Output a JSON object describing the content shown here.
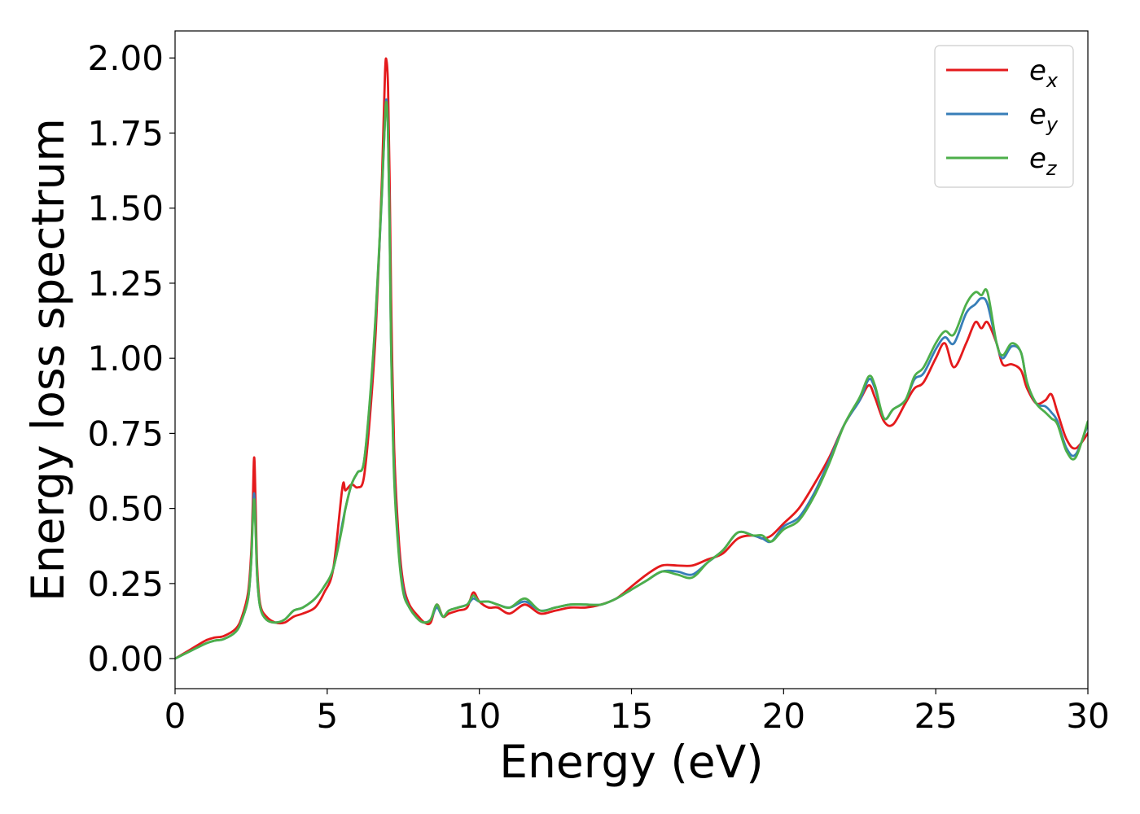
{
  "chart_data": {
    "type": "line",
    "title": "",
    "xlabel": "Energy (eV)",
    "ylabel": "Energy loss spectrum",
    "xlim": [
      0,
      30
    ],
    "ylim": [
      -0.1,
      2.09
    ],
    "xticks": [
      0,
      5,
      10,
      15,
      20,
      25,
      30
    ],
    "xtick_labels": [
      "0",
      "5",
      "10",
      "15",
      "20",
      "25",
      "30"
    ],
    "yticks": [
      0,
      0.25,
      0.5,
      0.75,
      1.0,
      1.25,
      1.5,
      1.75,
      2.0
    ],
    "ytick_labels": [
      "0.00",
      "0.25",
      "0.50",
      "0.75",
      "1.00",
      "1.25",
      "1.50",
      "1.75",
      "2.00"
    ],
    "grid": false,
    "legend_position": "top-right",
    "series": [
      {
        "name": "e_x",
        "label_base": "e",
        "label_sub": "x",
        "color": "#e41a1c",
        "x": [
          0,
          0.5,
          1.0,
          1.3,
          1.6,
          2.0,
          2.2,
          2.4,
          2.5,
          2.55,
          2.6,
          2.65,
          2.7,
          2.8,
          3.0,
          3.3,
          3.6,
          3.9,
          4.2,
          4.6,
          4.9,
          5.2,
          5.5,
          5.6,
          5.8,
          6.0,
          6.2,
          6.4,
          6.6,
          6.8,
          6.9,
          6.95,
          7.0,
          7.05,
          7.1,
          7.2,
          7.35,
          7.5,
          7.7,
          8.0,
          8.2,
          8.4,
          8.6,
          8.8,
          9.0,
          9.3,
          9.6,
          9.8,
          10.0,
          10.3,
          10.6,
          11.0,
          11.5,
          12.0,
          12.5,
          13.0,
          13.5,
          14.0,
          14.5,
          15.0,
          15.5,
          16.0,
          16.5,
          17.0,
          17.5,
          18.0,
          18.5,
          19.0,
          19.3,
          19.6,
          20.0,
          20.5,
          21.0,
          21.5,
          22.0,
          22.5,
          22.8,
          23.0,
          23.3,
          23.6,
          24.0,
          24.3,
          24.6,
          25.0,
          25.3,
          25.6,
          26.0,
          26.3,
          26.5,
          26.7,
          27.0,
          27.2,
          27.5,
          27.8,
          28.0,
          28.3,
          28.6,
          28.8,
          29.0,
          29.3,
          29.6,
          30.0
        ],
        "values": [
          0,
          0.03,
          0.06,
          0.07,
          0.075,
          0.1,
          0.14,
          0.22,
          0.35,
          0.5,
          0.67,
          0.5,
          0.3,
          0.18,
          0.14,
          0.12,
          0.12,
          0.14,
          0.15,
          0.17,
          0.22,
          0.3,
          0.57,
          0.56,
          0.58,
          0.57,
          0.6,
          0.8,
          1.1,
          1.6,
          1.95,
          1.99,
          1.9,
          1.6,
          1.2,
          0.7,
          0.4,
          0.25,
          0.18,
          0.14,
          0.12,
          0.12,
          0.18,
          0.14,
          0.15,
          0.16,
          0.17,
          0.22,
          0.19,
          0.17,
          0.17,
          0.15,
          0.18,
          0.15,
          0.16,
          0.17,
          0.17,
          0.18,
          0.2,
          0.24,
          0.28,
          0.31,
          0.31,
          0.31,
          0.33,
          0.35,
          0.4,
          0.41,
          0.4,
          0.41,
          0.45,
          0.5,
          0.58,
          0.67,
          0.78,
          0.86,
          0.91,
          0.87,
          0.79,
          0.78,
          0.85,
          0.9,
          0.92,
          1.0,
          1.05,
          0.97,
          1.05,
          1.12,
          1.1,
          1.12,
          1.05,
          0.98,
          0.98,
          0.96,
          0.9,
          0.85,
          0.86,
          0.88,
          0.82,
          0.73,
          0.7,
          0.75
        ]
      },
      {
        "name": "e_y",
        "label_base": "e",
        "label_sub": "y",
        "color": "#377eb8",
        "x": [
          0,
          0.5,
          1.0,
          1.3,
          1.6,
          2.0,
          2.2,
          2.4,
          2.5,
          2.55,
          2.6,
          2.65,
          2.7,
          2.8,
          3.0,
          3.3,
          3.6,
          3.9,
          4.2,
          4.6,
          4.9,
          5.2,
          5.5,
          5.6,
          5.8,
          6.0,
          6.2,
          6.4,
          6.6,
          6.8,
          6.9,
          6.95,
          7.0,
          7.05,
          7.1,
          7.2,
          7.35,
          7.5,
          7.7,
          8.0,
          8.2,
          8.4,
          8.6,
          8.8,
          9.0,
          9.3,
          9.6,
          9.8,
          10.0,
          10.3,
          10.6,
          11.0,
          11.5,
          12.0,
          12.5,
          13.0,
          13.5,
          14.0,
          14.5,
          15.0,
          15.5,
          16.0,
          16.5,
          17.0,
          17.5,
          18.0,
          18.5,
          19.0,
          19.3,
          19.6,
          20.0,
          20.5,
          21.0,
          21.5,
          22.0,
          22.5,
          22.8,
          23.0,
          23.3,
          23.6,
          24.0,
          24.3,
          24.6,
          25.0,
          25.3,
          25.6,
          26.0,
          26.3,
          26.5,
          26.7,
          27.0,
          27.2,
          27.5,
          27.8,
          28.0,
          28.3,
          28.6,
          28.8,
          29.0,
          29.3,
          29.6,
          30.0
        ],
        "values": [
          0,
          0.025,
          0.05,
          0.06,
          0.065,
          0.09,
          0.13,
          0.2,
          0.32,
          0.46,
          0.55,
          0.43,
          0.27,
          0.17,
          0.13,
          0.12,
          0.13,
          0.16,
          0.17,
          0.2,
          0.24,
          0.3,
          0.45,
          0.5,
          0.58,
          0.62,
          0.65,
          0.85,
          1.15,
          1.55,
          1.8,
          1.86,
          1.75,
          1.45,
          1.05,
          0.62,
          0.36,
          0.23,
          0.17,
          0.13,
          0.12,
          0.13,
          0.17,
          0.14,
          0.16,
          0.17,
          0.18,
          0.2,
          0.19,
          0.19,
          0.18,
          0.17,
          0.19,
          0.16,
          0.17,
          0.18,
          0.18,
          0.18,
          0.2,
          0.23,
          0.26,
          0.29,
          0.29,
          0.28,
          0.32,
          0.36,
          0.42,
          0.41,
          0.4,
          0.39,
          0.44,
          0.47,
          0.55,
          0.66,
          0.78,
          0.86,
          0.93,
          0.9,
          0.8,
          0.83,
          0.86,
          0.93,
          0.95,
          1.03,
          1.07,
          1.05,
          1.15,
          1.18,
          1.2,
          1.18,
          1.05,
          1.0,
          1.04,
          1.02,
          0.92,
          0.85,
          0.84,
          0.82,
          0.79,
          0.7,
          0.68,
          0.78
        ]
      },
      {
        "name": "e_z",
        "label_base": "e",
        "label_sub": "z",
        "color": "#4daf4a",
        "x": [
          0,
          0.5,
          1.0,
          1.3,
          1.6,
          2.0,
          2.2,
          2.4,
          2.5,
          2.55,
          2.6,
          2.65,
          2.7,
          2.8,
          3.0,
          3.3,
          3.6,
          3.9,
          4.2,
          4.6,
          4.9,
          5.2,
          5.5,
          5.6,
          5.8,
          6.0,
          6.2,
          6.4,
          6.6,
          6.8,
          6.9,
          6.95,
          7.0,
          7.05,
          7.1,
          7.2,
          7.35,
          7.5,
          7.7,
          8.0,
          8.2,
          8.4,
          8.6,
          8.8,
          9.0,
          9.3,
          9.6,
          9.8,
          10.0,
          10.3,
          10.6,
          11.0,
          11.5,
          12.0,
          12.5,
          13.0,
          13.5,
          14.0,
          14.5,
          15.0,
          15.5,
          16.0,
          16.5,
          17.0,
          17.5,
          18.0,
          18.5,
          19.0,
          19.3,
          19.6,
          20.0,
          20.5,
          21.0,
          21.5,
          22.0,
          22.5,
          22.8,
          23.0,
          23.3,
          23.6,
          24.0,
          24.3,
          24.6,
          25.0,
          25.3,
          25.6,
          26.0,
          26.3,
          26.5,
          26.7,
          27.0,
          27.2,
          27.5,
          27.8,
          28.0,
          28.3,
          28.6,
          28.8,
          29.0,
          29.3,
          29.6,
          30.0
        ],
        "values": [
          0,
          0.025,
          0.05,
          0.06,
          0.065,
          0.09,
          0.13,
          0.2,
          0.32,
          0.45,
          0.53,
          0.42,
          0.27,
          0.17,
          0.13,
          0.12,
          0.13,
          0.16,
          0.17,
          0.2,
          0.24,
          0.3,
          0.44,
          0.5,
          0.58,
          0.62,
          0.65,
          0.86,
          1.16,
          1.56,
          1.8,
          1.85,
          1.74,
          1.44,
          1.04,
          0.6,
          0.35,
          0.22,
          0.17,
          0.13,
          0.12,
          0.13,
          0.18,
          0.14,
          0.16,
          0.17,
          0.18,
          0.21,
          0.19,
          0.19,
          0.18,
          0.17,
          0.2,
          0.16,
          0.17,
          0.18,
          0.18,
          0.18,
          0.2,
          0.23,
          0.26,
          0.29,
          0.28,
          0.27,
          0.32,
          0.36,
          0.42,
          0.41,
          0.41,
          0.39,
          0.43,
          0.46,
          0.54,
          0.65,
          0.78,
          0.87,
          0.94,
          0.91,
          0.8,
          0.83,
          0.86,
          0.94,
          0.97,
          1.05,
          1.09,
          1.08,
          1.18,
          1.22,
          1.21,
          1.22,
          1.05,
          1.01,
          1.05,
          1.02,
          0.92,
          0.85,
          0.82,
          0.8,
          0.78,
          0.69,
          0.67,
          0.79
        ]
      }
    ]
  }
}
